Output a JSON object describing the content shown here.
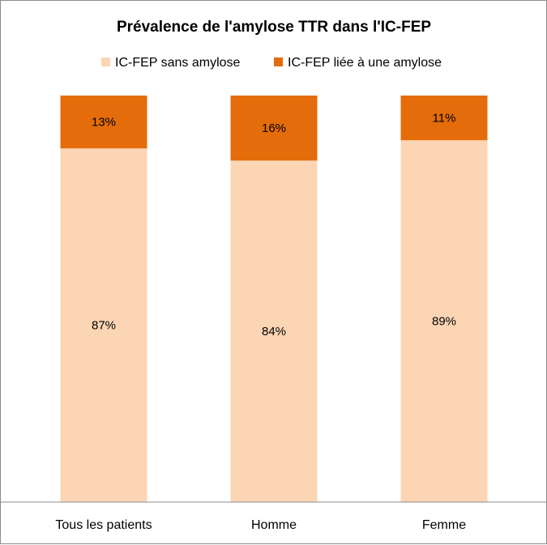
{
  "chart_data": {
    "type": "bar",
    "stacked": true,
    "percent_stacked": true,
    "title": "Prévalence de l'amylose TTR dans l'IC-FEP",
    "categories": [
      "Tous les patients",
      "Homme",
      "Femme"
    ],
    "series": [
      {
        "name": "IC-FEP sans amylose",
        "values": [
          87,
          84,
          89
        ],
        "labels": [
          "87%",
          "84%",
          "89%"
        ],
        "color": "#fcd5b5"
      },
      {
        "name": "IC-FEP liée à une amylose",
        "values": [
          13,
          16,
          11
        ],
        "labels": [
          "13%",
          "16%",
          "11%"
        ],
        "color": "#e46c0a"
      }
    ],
    "ylim": [
      0,
      100
    ],
    "xlabel": "",
    "ylabel": "",
    "legend_position": "top",
    "grid": false
  }
}
